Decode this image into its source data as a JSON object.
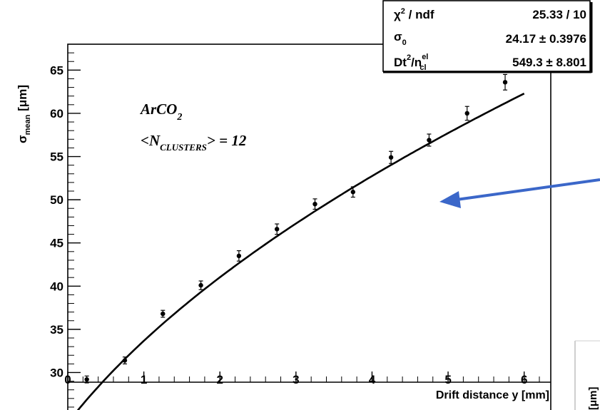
{
  "chart_data": {
    "type": "scatter",
    "xlabel": "Drift distance y [mm]",
    "ylabel": {
      "symbol": "σ",
      "sub": "mean",
      "unit": "[μm]"
    },
    "xlim": [
      0,
      6.35
    ],
    "ylim": [
      25.5,
      68
    ],
    "xticks": [
      0,
      1,
      2,
      3,
      4,
      5,
      6
    ],
    "yticks": [
      30,
      35,
      40,
      45,
      50,
      55,
      60,
      65
    ],
    "grid": false,
    "points": [
      {
        "x": 0.25,
        "y": 29.2,
        "err": 0.4
      },
      {
        "x": 0.75,
        "y": 31.4,
        "err": 0.4
      },
      {
        "x": 1.25,
        "y": 36.8,
        "err": 0.4
      },
      {
        "x": 1.75,
        "y": 40.1,
        "err": 0.5
      },
      {
        "x": 2.25,
        "y": 43.5,
        "err": 0.6
      },
      {
        "x": 2.75,
        "y": 46.6,
        "err": 0.6
      },
      {
        "x": 3.25,
        "y": 49.5,
        "err": 0.6
      },
      {
        "x": 3.75,
        "y": 50.9,
        "err": 0.6
      },
      {
        "x": 4.25,
        "y": 54.9,
        "err": 0.7
      },
      {
        "x": 4.75,
        "y": 56.9,
        "err": 0.7
      },
      {
        "x": 5.25,
        "y": 60.0,
        "err": 0.8
      },
      {
        "x": 5.75,
        "y": 63.6,
        "err": 0.9
      }
    ],
    "fit": {
      "sigma0": 24.17,
      "dt2_over_ncl": 549.3,
      "x_range": [
        0.02,
        6.0
      ]
    },
    "annotation": {
      "gas": "ArCO",
      "gas_sub": "2",
      "nclusters_label": "N",
      "nclusters_sub": "CLUSTERS",
      "nclusters_value": "= 12"
    },
    "stats_box": {
      "rows": [
        {
          "label": "χ",
          "label_sup": "2",
          "label_rest": " / ndf",
          "value": "25.33 / 10"
        },
        {
          "label": "σ",
          "label_sub": "0",
          "value": "24.17 ± 0.3976"
        },
        {
          "label": "Dt",
          "label_sup": "2",
          "label_rest": "/n",
          "label_sup2": "el",
          "label_sub2": "cl",
          "value": "549.3 ± 8.801"
        }
      ]
    },
    "colors": {
      "arrow": "#3b67c9",
      "frame": "#000000",
      "background": "#ffffff"
    }
  },
  "partial_axis_label": "[μm]"
}
